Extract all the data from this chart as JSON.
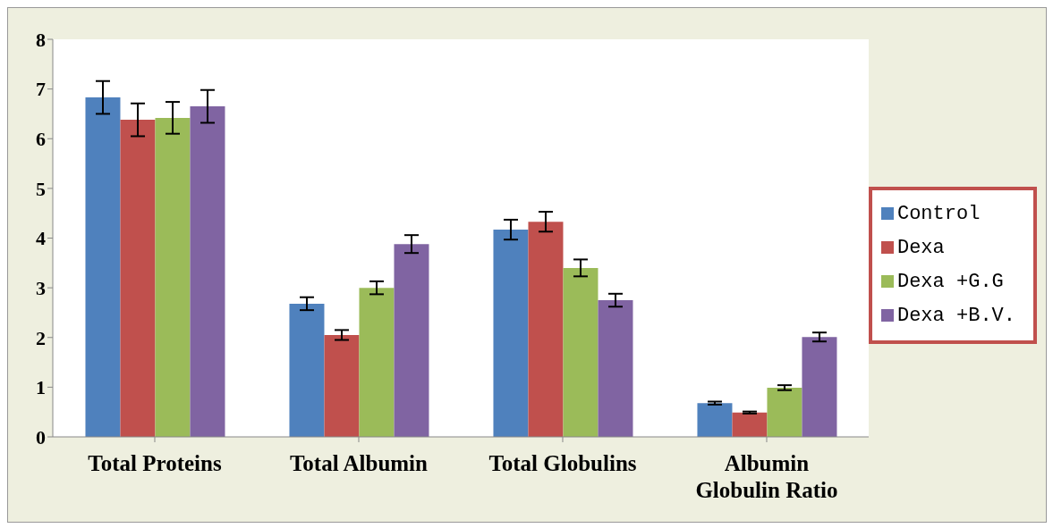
{
  "chart_data": {
    "type": "bar",
    "categories": [
      "Total Proteins",
      "Total Albumin",
      "Total Globulins",
      "Albumin Globulin Ratio"
    ],
    "series": [
      {
        "name": "Control",
        "color": "#4f81bd",
        "values": [
          6.83,
          2.68,
          4.17,
          0.68
        ],
        "errors": [
          0.33,
          0.13,
          0.2,
          0.03
        ]
      },
      {
        "name": "Dexa",
        "color": "#c0504d",
        "values": [
          6.38,
          2.05,
          4.33,
          0.49
        ],
        "errors": [
          0.33,
          0.1,
          0.2,
          0.02
        ]
      },
      {
        "name": "Dexa +G.G",
        "color": "#9bbb59",
        "values": [
          6.42,
          3.0,
          3.4,
          0.99
        ],
        "errors": [
          0.32,
          0.13,
          0.17,
          0.05
        ]
      },
      {
        "name": "Dexa +B.V.",
        "color": "#8064a2",
        "values": [
          6.65,
          3.88,
          2.75,
          2.01
        ],
        "errors": [
          0.33,
          0.18,
          0.13,
          0.09
        ]
      }
    ],
    "ylim": [
      0,
      8
    ],
    "yticks": [
      0,
      1,
      2,
      3,
      4,
      5,
      6,
      7,
      8
    ],
    "grid": false,
    "legend": "right"
  }
}
